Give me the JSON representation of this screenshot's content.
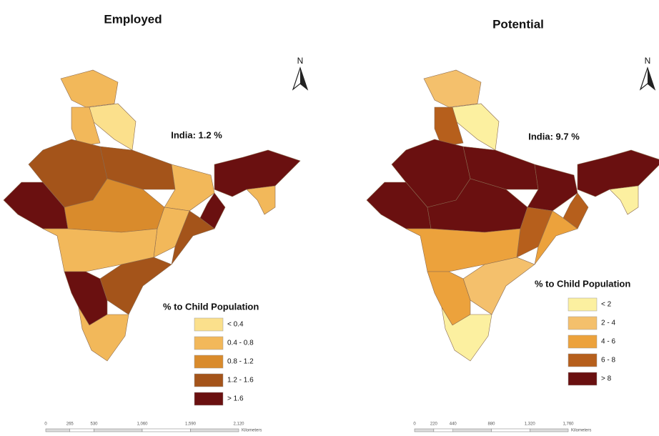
{
  "maps": [
    {
      "title": "Employed",
      "annotation": "India: 1.2 %",
      "north": "N",
      "legend": {
        "title": "% to Child Population",
        "items": [
          {
            "label": "< 0.4",
            "color": "#fbe08c"
          },
          {
            "label": "0.4 - 0.8",
            "color": "#f2b85a"
          },
          {
            "label": "0.8 - 1.2",
            "color": "#d98b2c"
          },
          {
            "label": "1.2 - 1.6",
            "color": "#a4541a"
          },
          {
            "label": "> 1.6",
            "color": "#6a1010"
          }
        ]
      },
      "scale": {
        "ticks": [
          "0",
          "265",
          "530",
          "1,060",
          "1,590",
          "2,120"
        ],
        "unit": "Kilometers"
      }
    },
    {
      "title": "Potential",
      "annotation": "India: 9.7 %",
      "north": "N",
      "legend": {
        "title": "% to Child Population",
        "items": [
          {
            "label": "< 2",
            "color": "#fcf0a0"
          },
          {
            "label": "2 - 4",
            "color": "#f4c06c"
          },
          {
            "label": "4 - 6",
            "color": "#eca23c"
          },
          {
            "label": "6 - 8",
            "color": "#b65f1c"
          },
          {
            "label": "> 8",
            "color": "#6a1010"
          }
        ]
      },
      "scale": {
        "ticks": [
          "0",
          "220",
          "440",
          "880",
          "1,320",
          "1,760"
        ],
        "unit": "Kilometers"
      }
    }
  ]
}
